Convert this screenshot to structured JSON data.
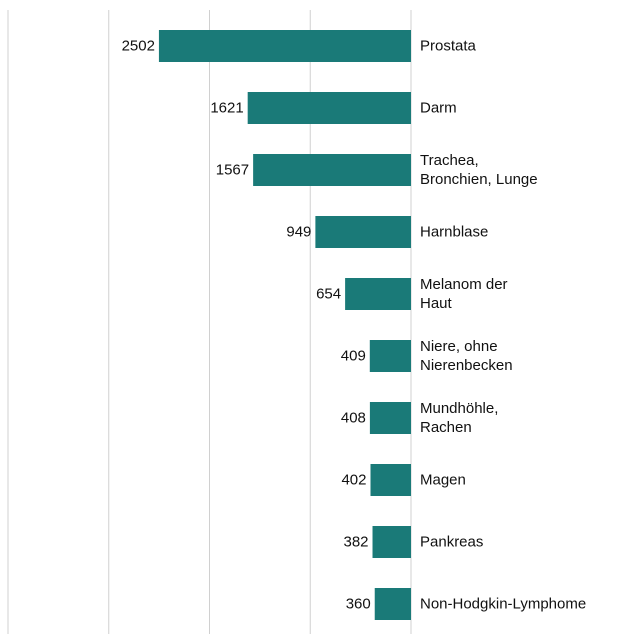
{
  "chart_data": {
    "type": "bar",
    "orientation": "horizontal",
    "x_reversed": true,
    "categories": [
      "Prostata",
      "Darm",
      "Trachea,\nBronchien, Lunge",
      "Harnblase",
      "Melanom der\nHaut",
      "Niere, ohne\nNierenbecken",
      "Mundhöhle,\nRachen",
      "Magen",
      "Pankreas",
      "Non-Hodgkin-Lymphome"
    ],
    "values": [
      2502,
      1621,
      1567,
      949,
      654,
      409,
      408,
      402,
      382,
      360
    ],
    "color": "#1a7a78",
    "xlim": [
      0,
      4000
    ],
    "xticks": [
      0,
      1000,
      2000,
      3000,
      4000
    ],
    "grid": true
  }
}
